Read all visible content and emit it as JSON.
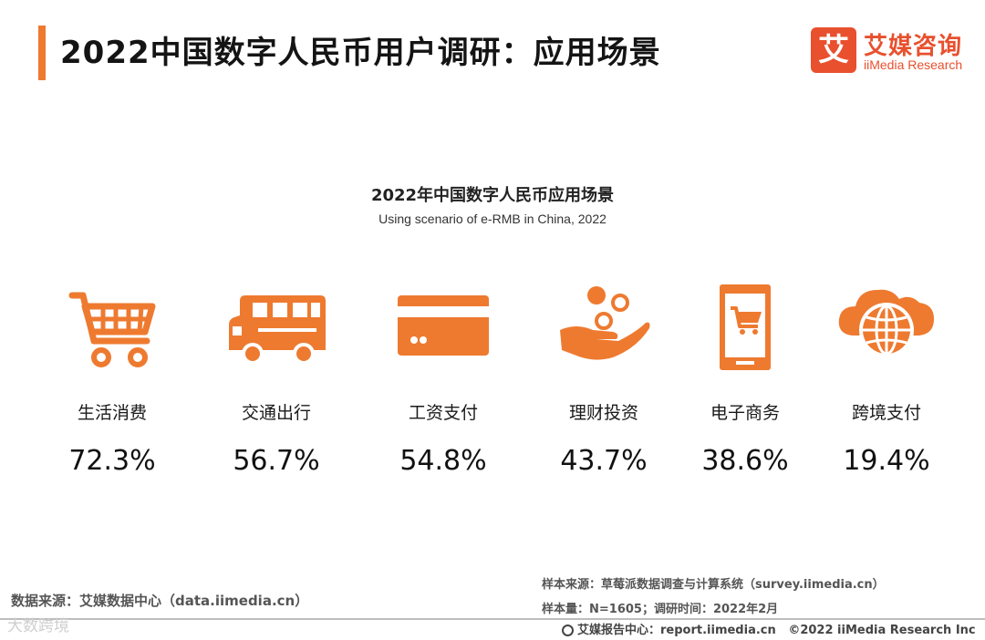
{
  "header": {
    "title": "2022中国数字人民币用户调研：应用场景"
  },
  "logo": {
    "mark": "艾",
    "name_cn": "艾媒咨询",
    "name_en": "iiMedia Research"
  },
  "colors": {
    "accent": "#ee7a30",
    "logo": "#e8502e"
  },
  "chart_data": {
    "type": "table",
    "title": "2022年中国数字人民币应用场景",
    "subtitle": "Using scenario of e-RMB in China, 2022",
    "unit": "%",
    "categories": [
      "生活消费",
      "交通出行",
      "工资支付",
      "理财投资",
      "电子商务",
      "跨境支付"
    ],
    "values": [
      72.3,
      56.7,
      54.8,
      43.7,
      38.6,
      19.4
    ],
    "value_labels": [
      "72.3%",
      "56.7%",
      "54.8%",
      "43.7%",
      "38.6%",
      "19.4%"
    ],
    "icons": [
      "shopping-cart-icon",
      "bus-icon",
      "bank-card-icon",
      "coins-in-hand-icon",
      "phone-cart-icon",
      "globe-cloud-icon"
    ]
  },
  "sources": {
    "data_source": "数据来源：艾媒数据中心（data.iimedia.cn）",
    "sample_source": "样本来源：草莓派数据调查与计算系统（survey.iimedia.cn）",
    "sample_size": "样本量：N=1605；调研时间：2022年2月"
  },
  "footer": {
    "report": "艾媒报告中心：report.iimedia.cn",
    "copyright": "©2022 iiMedia Research Inc"
  },
  "watermark": "大数跨境"
}
